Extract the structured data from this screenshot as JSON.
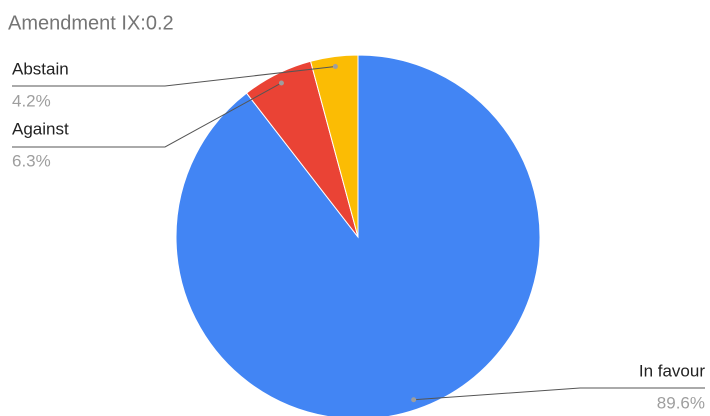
{
  "chart_data": {
    "type": "pie",
    "title": "Amendment IX:0.2",
    "categories": [
      "In favour",
      "Against",
      "Abstain"
    ],
    "values": [
      89.6,
      6.3,
      4.2
    ],
    "value_labels": [
      "89.6%",
      "6.3%",
      "4.2%"
    ],
    "colors": [
      "#4285f4",
      "#ea4335",
      "#fbbc04"
    ]
  }
}
